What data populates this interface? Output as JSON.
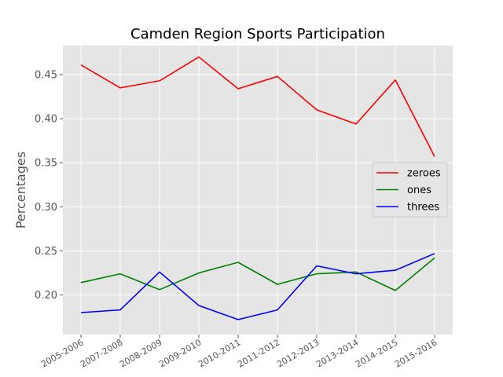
{
  "chart_data": {
    "type": "line",
    "title": "Camden Region Sports Participation",
    "xlabel": "",
    "ylabel": "Percentages",
    "categories": [
      "2005-2006",
      "2007-2008",
      "2008-2009",
      "2009-2010",
      "2010-2011",
      "2011-2012",
      "2012-2013",
      "2013-2014",
      "2014-2015",
      "2015-2016"
    ],
    "series": [
      {
        "name": "zeroes",
        "color": "#ff0000",
        "values": [
          0.461,
          0.435,
          0.443,
          0.47,
          0.434,
          0.448,
          0.41,
          0.394,
          0.444,
          0.357
        ]
      },
      {
        "name": "ones",
        "color": "#008000",
        "values": [
          0.214,
          0.224,
          0.206,
          0.225,
          0.237,
          0.212,
          0.224,
          0.226,
          0.205,
          0.242
        ]
      },
      {
        "name": "threes",
        "color": "#0000ff",
        "values": [
          0.18,
          0.183,
          0.226,
          0.188,
          0.172,
          0.183,
          0.233,
          0.224,
          0.228,
          0.247
        ]
      }
    ],
    "yticks": [
      "0.20",
      "0.25",
      "0.30",
      "0.35",
      "0.40",
      "0.45"
    ],
    "ylim": [
      0.155,
      0.483
    ],
    "grid": true,
    "legend_position": "center-right",
    "style": "ggplot",
    "background": "#e5e5e5"
  }
}
